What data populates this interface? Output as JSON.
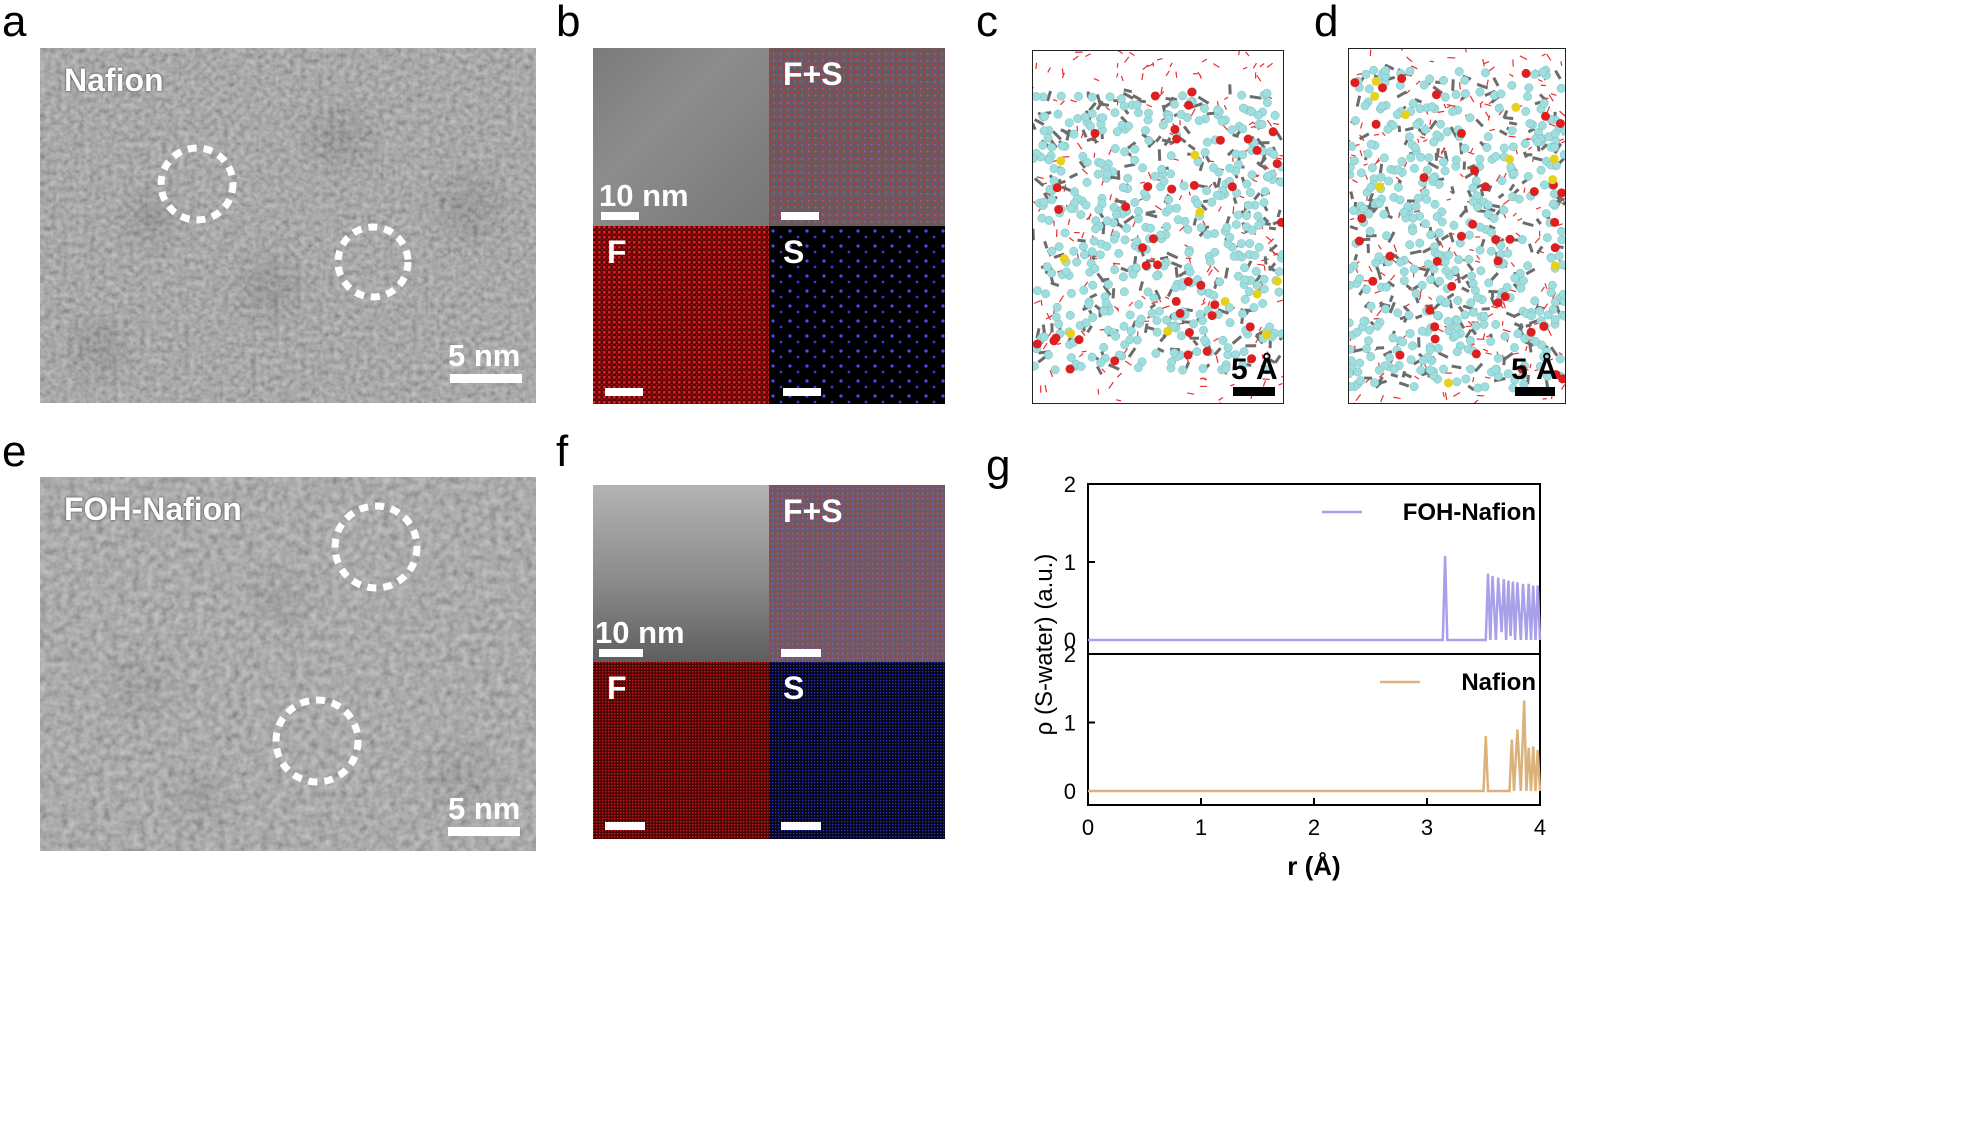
{
  "panels": {
    "a": {
      "letter": "a",
      "label": "Nafion",
      "scale": "5 nm"
    },
    "b": {
      "letter": "b",
      "scale": "10 nm",
      "quads": [
        "F+S",
        "F",
        "S"
      ]
    },
    "c": {
      "letter": "c",
      "scale": "5 Å"
    },
    "d": {
      "letter": "d",
      "scale": "5 Å"
    },
    "e": {
      "letter": "e",
      "label": "FOH-Nafion",
      "scale": "5 nm"
    },
    "f": {
      "letter": "f",
      "scale": "10 nm",
      "quads": [
        "F+S",
        "F",
        "S"
      ]
    },
    "g": {
      "letter": "g"
    }
  },
  "colors": {
    "foh_series": "#a9a0ea",
    "nafion_series": "#dcb27c",
    "eds_F": "#c81e1e",
    "eds_S": "#3a3ad8",
    "md_fluorine": "#9fdede",
    "md_carbon": "#6c6c6c",
    "md_oxygen": "#dd1f1f",
    "md_sulfur": "#e6d21c",
    "md_water": "#e83030"
  },
  "chart_data": {
    "type": "line",
    "xlabel": "r (Å)",
    "ylabel": "ρ (S-water) (a.u.)",
    "xlim": [
      0,
      4
    ],
    "x_ticks": [
      "0",
      "1",
      "2",
      "3",
      "4"
    ],
    "subplots": [
      {
        "name": "FOH-Nafion",
        "ylim": [
          0,
          2
        ],
        "y_ticks": [
          "0",
          "1",
          "2"
        ],
        "legend": "top-right",
        "x": [
          0,
          3.14,
          3.16,
          3.18,
          3.52,
          3.54,
          3.56,
          3.58,
          3.61,
          3.63,
          3.66,
          3.68,
          3.7,
          3.72,
          3.74,
          3.76,
          3.78,
          3.8,
          3.83,
          3.85,
          3.88,
          3.9,
          3.92,
          3.94,
          3.96,
          3.98,
          4.0
        ],
        "y": [
          0,
          0,
          1.08,
          0,
          0,
          0.85,
          0,
          0.82,
          0,
          0.8,
          0.1,
          0.78,
          0,
          0.76,
          0.05,
          0.75,
          0,
          0.74,
          0,
          0.72,
          0,
          0.72,
          0,
          0.7,
          0,
          0.7,
          0
        ]
      },
      {
        "name": "Nafion",
        "ylim": [
          0,
          2
        ],
        "y_ticks": [
          "0",
          "1",
          "2"
        ],
        "legend": "top-right",
        "x": [
          0,
          3.5,
          3.52,
          3.54,
          3.73,
          3.75,
          3.77,
          3.8,
          3.83,
          3.86,
          3.88,
          3.9,
          3.92,
          3.94,
          3.96,
          3.98,
          4.0
        ],
        "y": [
          0,
          0,
          0.8,
          0,
          0,
          0.75,
          0,
          0.9,
          0,
          1.32,
          0,
          0.63,
          0,
          0.65,
          0,
          0.6,
          0
        ]
      }
    ]
  }
}
